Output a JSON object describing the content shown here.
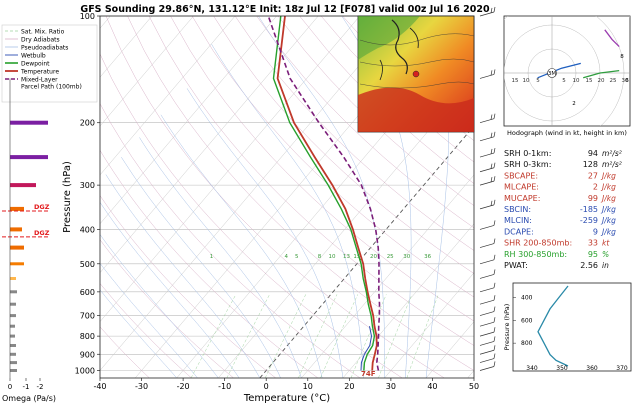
{
  "title": "GFS Sounding 29.86°N, 131.12°E Init: 18z Jul 12 [F078] valid 00z Jul 16 2020",
  "legend": [
    "Sat. Mix. Ratio",
    "Dry Adiabats",
    "Pseudoadiabats",
    "Wetbulb",
    "Dewpoint",
    "Temperature",
    "Mixed-Layer\nParcel Path (100mb)"
  ],
  "colors": {
    "temperature": "#c0392b",
    "dewpoint": "#27a02c",
    "wetbulb": "#2a4bb0",
    "parcel": "#7b1e7a",
    "dgz": "#e31a1c"
  },
  "left_panel": {
    "xlabel": "Omega (Pa/s)",
    "ticks": [
      "0",
      "-1",
      "-2"
    ],
    "dgz_label": "DGZ"
  },
  "surface_label": "74F",
  "chart_data": [
    {
      "type": "line",
      "title": "GFS Sounding 29.86°N, 131.12°E Init: 18z Jul 12 [F078] valid 00z Jul 16 2020",
      "xlabel": "Temperature (°C)",
      "ylabel": "Pressure (hPa)",
      "xlim": [
        -40,
        50
      ],
      "ylim": [
        1050,
        100
      ],
      "y_scale": "log",
      "x_ticks": [
        -40,
        -30,
        -20,
        -10,
        0,
        10,
        20,
        30,
        40,
        50
      ],
      "y_ticks": [
        100,
        200,
        300,
        400,
        500,
        600,
        700,
        800,
        900,
        1000
      ],
      "grid": true,
      "legend_position": "top-left",
      "mixing_ratio_labels": [
        "1",
        "4",
        "5",
        "8",
        "10",
        "13",
        "15",
        "20",
        "25",
        "30",
        "36"
      ],
      "series": [
        {
          "name": "Temperature",
          "pressure": [
            1000,
            950,
            900,
            850,
            800,
            750,
            700,
            650,
            600,
            550,
            500,
            450,
            400,
            350,
            300,
            250,
            200,
            150,
            100
          ],
          "values": [
            25.5,
            24,
            22.8,
            21.5,
            19.5,
            17,
            14.5,
            11.5,
            8.3,
            5,
            1.5,
            -3,
            -8,
            -14,
            -22,
            -32,
            -44,
            -57,
            -68
          ]
        },
        {
          "name": "Dewpoint",
          "pressure": [
            1000,
            950,
            900,
            850,
            800,
            750,
            700,
            650,
            600,
            550,
            500,
            450,
            400,
            350,
            300,
            250,
            200,
            150,
            100
          ],
          "values": [
            23.5,
            22,
            21,
            20.5,
            19,
            16.5,
            14,
            11,
            8,
            4.5,
            1,
            -3.5,
            -8.5,
            -15,
            -23,
            -33,
            -45,
            -58,
            -69
          ]
        },
        {
          "name": "Mixed-Layer Parcel Path (100mb)",
          "pressure": [
            1000,
            950,
            900,
            850,
            800,
            750,
            700,
            650,
            600,
            550,
            500,
            450,
            400,
            350,
            300,
            250,
            200,
            150,
            100
          ],
          "values": [
            27,
            25,
            23.5,
            21.8,
            20,
            18,
            16,
            13.7,
            11,
            8.3,
            5.3,
            1.8,
            -2.5,
            -8,
            -15,
            -25,
            -38,
            -54,
            -72
          ]
        }
      ]
    },
    {
      "type": "scatter",
      "title": "Hodograph (wind in kt, height in km)",
      "ring_labels": [
        "15",
        "10",
        "5",
        "5",
        "10",
        "15",
        "20",
        "25",
        "30"
      ],
      "height_labels": [
        "3M",
        "6",
        "8",
        "2"
      ],
      "series": [
        {
          "name": "0-3 km",
          "u": [
            13,
            20,
            28
          ],
          "v": [
            -2,
            0,
            1
          ]
        },
        {
          "name": "3-6 km",
          "u": [
            -6,
            4,
            12
          ],
          "v": [
            -2,
            2,
            4
          ]
        },
        {
          "name": "6-9 km",
          "u": [
            22,
            25,
            28
          ],
          "v": [
            18,
            14,
            11
          ]
        }
      ]
    },
    {
      "type": "line",
      "xlabel": "",
      "ylabel": "Pressure (hPa)",
      "x_ticks": [
        "340",
        "350",
        "360",
        "370"
      ],
      "y_ticks": [
        "400",
        "600",
        "800"
      ],
      "xlim": [
        336,
        372
      ],
      "ylim": [
        1000,
        300
      ],
      "series": [
        {
          "name": "Theta-E",
          "pressure": [
            300,
            400,
            500,
            600,
            700,
            800,
            900,
            950,
            1000
          ],
          "values": [
            352,
            349,
            346,
            344,
            342,
            344,
            346,
            348,
            352
          ]
        }
      ]
    }
  ],
  "indices": [
    {
      "label": "SRH 0-1km:",
      "value": "94",
      "unit": "m²/s²",
      "color": "#111111"
    },
    {
      "label": "SRH 0-3km:",
      "value": "128",
      "unit": "m²/s²",
      "color": "#111111"
    },
    {
      "label": "SBCAPE:",
      "value": "27",
      "unit": "J/kg",
      "color": "#c0392b"
    },
    {
      "label": "MLCAPE:",
      "value": "2",
      "unit": "J/kg",
      "color": "#c0392b"
    },
    {
      "label": "MUCAPE:",
      "value": "99",
      "unit": "J/kg",
      "color": "#c0392b"
    },
    {
      "label": "SBCIN:",
      "value": "-185",
      "unit": "J/kg",
      "color": "#2a4bb0"
    },
    {
      "label": "MLCIN:",
      "value": "-259",
      "unit": "J/kg",
      "color": "#2a4bb0"
    },
    {
      "label": "DCAPE:",
      "value": "9",
      "unit": "J/kg",
      "color": "#2a4bb0"
    },
    {
      "label": "SHR 200-850mb:",
      "value": "33",
      "unit": "kt",
      "color": "#c0392b"
    },
    {
      "label": "RH 300-850mb:",
      "value": "95",
      "unit": "%",
      "color": "#27a02c"
    },
    {
      "label": "PWAT:",
      "value": "2.56",
      "unit": "in",
      "color": "#111111"
    }
  ]
}
